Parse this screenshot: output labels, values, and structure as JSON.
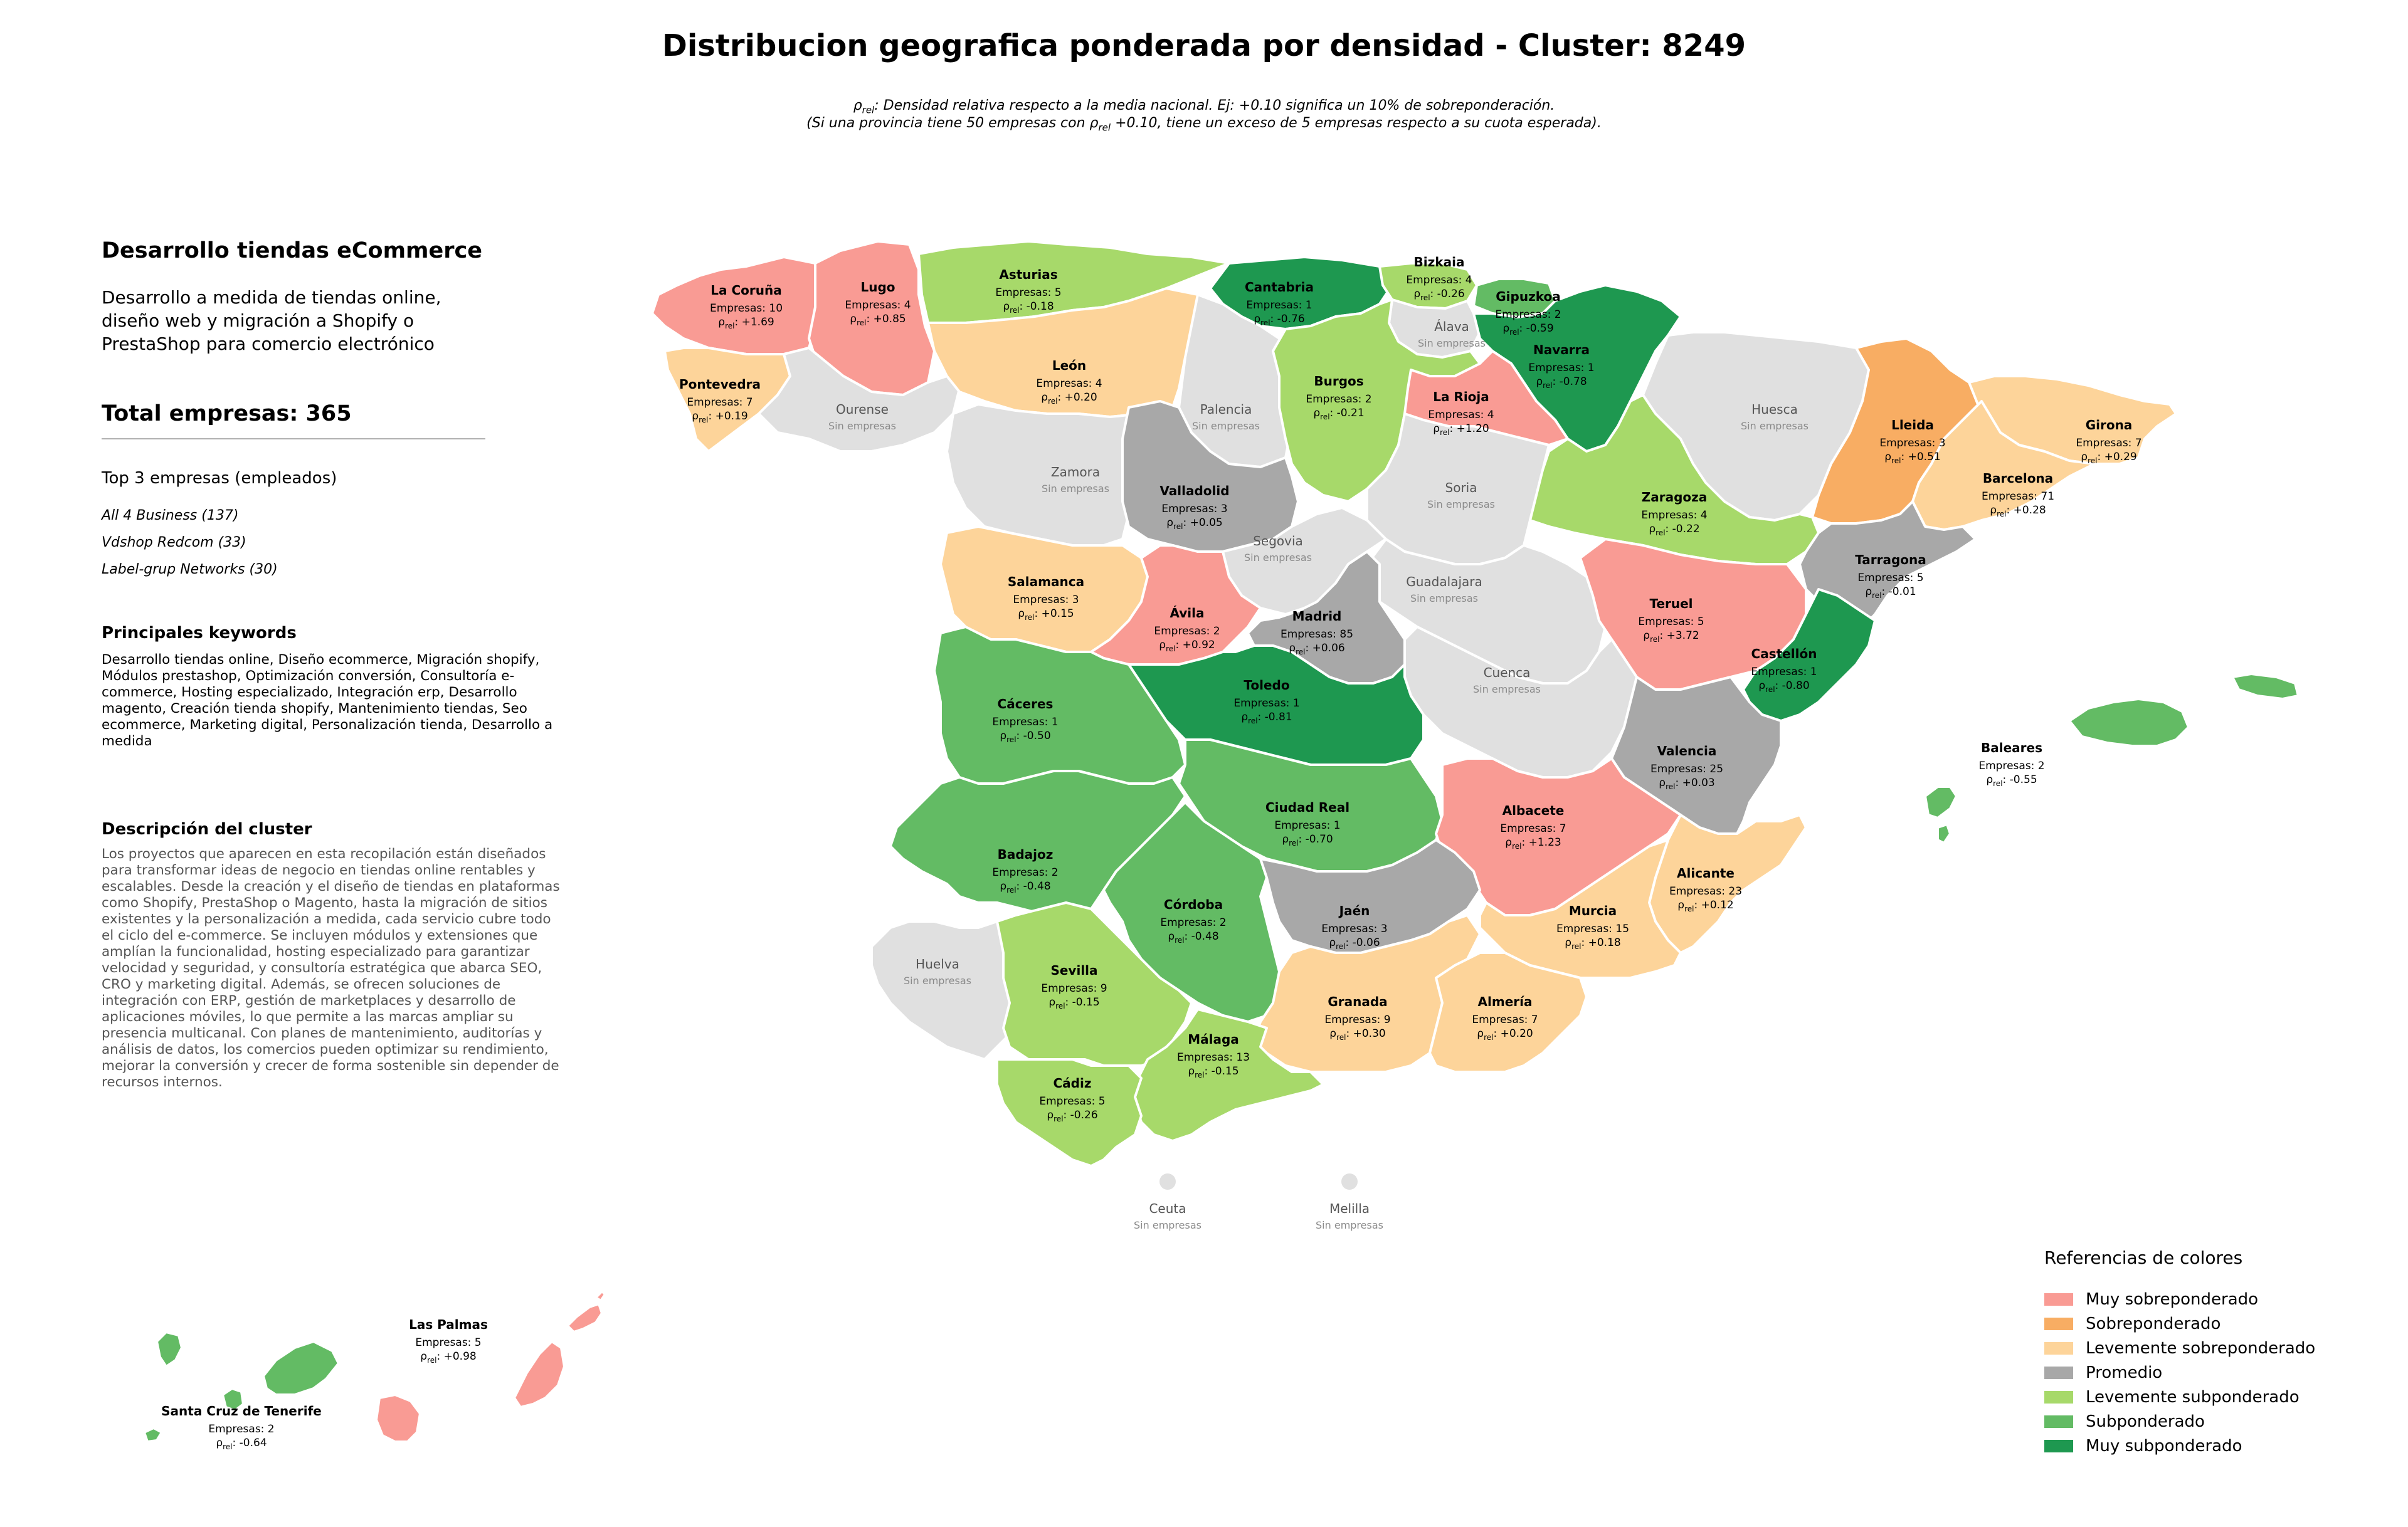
{
  "title": "Distribucion geografica ponderada por densidad - Cluster: 8249",
  "note_line1": "ρrel: Densidad relativa respecto a la media nacional. Ej: +0.10 significa un 10% de sobreponderación.",
  "note_line2": "(Si una provincia tiene 50 empresas con ρrel +0.10, tiene un exceso de 5 empresas respecto a su cuota esperada).",
  "sidebar": {
    "cluster_name": "Desarrollo tiendas eCommerce",
    "cluster_summary": "Desarrollo a medida de tiendas online, diseño web y migración a Shopify o PrestaShop para comercio electrónico",
    "total_label": "Total empresas: 365",
    "top_title": "Top 3 empresas (empleados)",
    "top_companies": [
      "All 4 Business (137)",
      "Vdshop Redcom (33)",
      "Label-grup Networks (30)"
    ],
    "keywords_title": "Principales keywords",
    "keywords": "Desarrollo tiendas online, Diseño ecommerce, Migración shopify, Módulos prestashop, Optimización conversión, Consultoría e-commerce, Hosting especializado, Integración erp, Desarrollo magento, Creación tienda shopify, Mantenimiento tiendas, Seo ecommerce, Marketing digital, Personalización tienda, Desarrollo a medida",
    "description_title": "Descripción del cluster",
    "description": "Los proyectos que aparecen en esta recopilación están diseñados para transformar ideas de negocio en tiendas online rentables y escalables. Desde la creación y el diseño de tiendas en plataformas como Shopify, PrestaShop o Magento, hasta la migración de sitios existentes y la personalización a medida, cada servicio cubre todo el ciclo del e-commerce. Se incluyen módulos y extensiones que amplían la funcionalidad, hosting especializado para garantizar velocidad y seguridad, y consultoría estratégica que abarca SEO, CRO y marketing digital. Además, se ofrecen soluciones de integración con ERP, gestión de marketplaces y desarrollo de aplicaciones móviles, lo que permite a las marcas ampliar su presencia multicanal. Con planes de mantenimiento, auditorías y análisis de datos, los comercios pueden optimizar su rendimiento, mejorar la conversión y crecer de forma sostenible sin depender de recursos internos."
  },
  "legend": {
    "title": "Referencias de colores",
    "items": [
      {
        "label": "Muy sobreponderado",
        "color": "#f99b94"
      },
      {
        "label": "Sobreponderado",
        "color": "#f8ad63"
      },
      {
        "label": "Levemente sobreponderado",
        "color": "#fdd49a"
      },
      {
        "label": "Promedio",
        "color": "#a8a8a8"
      },
      {
        "label": "Levemente subponderado",
        "color": "#a7d96a"
      },
      {
        "label": "Subponderado",
        "color": "#63bb64"
      },
      {
        "label": "Muy subponderado",
        "color": "#1e9850"
      }
    ]
  },
  "no_data_color": "#e0e0e0",
  "no_data_label": "Sin empresas",
  "provinces": [
    {
      "name": "La Coruña",
      "empresas": "Empresas: 10",
      "rho": "+1.69",
      "cat": 0
    },
    {
      "name": "Lugo",
      "empresas": "Empresas: 4",
      "rho": "+0.85",
      "cat": 0
    },
    {
      "name": "Asturias",
      "empresas": "Empresas: 5",
      "rho": "-0.18",
      "cat": 4
    },
    {
      "name": "Cantabria",
      "empresas": "Empresas: 1",
      "rho": "-0.76",
      "cat": 6
    },
    {
      "name": "Bizkaia",
      "empresas": "Empresas: 4",
      "rho": "-0.26",
      "cat": 4
    },
    {
      "name": "Gipuzkoa",
      "empresas": "Empresas: 2",
      "rho": "-0.59",
      "cat": 5
    },
    {
      "name": "Álava",
      "empresas": null,
      "rho": null,
      "cat": -1
    },
    {
      "name": "Navarra",
      "empresas": "Empresas: 1",
      "rho": "-0.78",
      "cat": 6
    },
    {
      "name": "Pontevedra",
      "empresas": "Empresas: 7",
      "rho": "+0.19",
      "cat": 2
    },
    {
      "name": "Ourense",
      "empresas": null,
      "rho": null,
      "cat": -1
    },
    {
      "name": "León",
      "empresas": "Empresas: 4",
      "rho": "+0.20",
      "cat": 2
    },
    {
      "name": "Palencia",
      "empresas": null,
      "rho": null,
      "cat": -1
    },
    {
      "name": "Burgos",
      "empresas": "Empresas: 2",
      "rho": "-0.21",
      "cat": 4
    },
    {
      "name": "La Rioja",
      "empresas": "Empresas: 4",
      "rho": "+1.20",
      "cat": 0
    },
    {
      "name": "Huesca",
      "empresas": null,
      "rho": null,
      "cat": -1
    },
    {
      "name": "Lleida",
      "empresas": "Empresas: 3",
      "rho": "+0.51",
      "cat": 1
    },
    {
      "name": "Girona",
      "empresas": "Empresas: 7",
      "rho": "+0.29",
      "cat": 2
    },
    {
      "name": "Barcelona",
      "empresas": "Empresas: 71",
      "rho": "+0.28",
      "cat": 2
    },
    {
      "name": "Zamora",
      "empresas": null,
      "rho": null,
      "cat": -1
    },
    {
      "name": "Valladolid",
      "empresas": "Empresas: 3",
      "rho": "+0.05",
      "cat": 3
    },
    {
      "name": "Soria",
      "empresas": null,
      "rho": null,
      "cat": -1
    },
    {
      "name": "Zaragoza",
      "empresas": "Empresas: 4",
      "rho": "-0.22",
      "cat": 4
    },
    {
      "name": "Tarragona",
      "empresas": "Empresas: 5",
      "rho": "-0.01",
      "cat": 3
    },
    {
      "name": "Salamanca",
      "empresas": "Empresas: 3",
      "rho": "+0.15",
      "cat": 2
    },
    {
      "name": "Segovia",
      "empresas": null,
      "rho": null,
      "cat": -1
    },
    {
      "name": "Guadalajara",
      "empresas": null,
      "rho": null,
      "cat": -1
    },
    {
      "name": "Teruel",
      "empresas": "Empresas: 5",
      "rho": "+3.72",
      "cat": 0
    },
    {
      "name": "Ávila",
      "empresas": "Empresas: 2",
      "rho": "+0.92",
      "cat": 0
    },
    {
      "name": "Madrid",
      "empresas": "Empresas: 85",
      "rho": "+0.06",
      "cat": 3
    },
    {
      "name": "Castellón",
      "empresas": "Empresas: 1",
      "rho": "-0.80",
      "cat": 6
    },
    {
      "name": "Cuenca",
      "empresas": null,
      "rho": null,
      "cat": -1
    },
    {
      "name": "Cáceres",
      "empresas": "Empresas: 1",
      "rho": "-0.50",
      "cat": 5
    },
    {
      "name": "Toledo",
      "empresas": "Empresas: 1",
      "rho": "-0.81",
      "cat": 6
    },
    {
      "name": "Valencia",
      "empresas": "Empresas: 25",
      "rho": "+0.03",
      "cat": 3
    },
    {
      "name": "Baleares",
      "empresas": "Empresas: 2",
      "rho": "-0.55",
      "cat": 5
    },
    {
      "name": "Ciudad Real",
      "empresas": "Empresas: 1",
      "rho": "-0.70",
      "cat": 5
    },
    {
      "name": "Albacete",
      "empresas": "Empresas: 7",
      "rho": "+1.23",
      "cat": 0
    },
    {
      "name": "Badajoz",
      "empresas": "Empresas: 2",
      "rho": "-0.48",
      "cat": 5
    },
    {
      "name": "Alicante",
      "empresas": "Empresas: 23",
      "rho": "+0.12",
      "cat": 2
    },
    {
      "name": "Córdoba",
      "empresas": "Empresas: 2",
      "rho": "-0.48",
      "cat": 5
    },
    {
      "name": "Jaén",
      "empresas": "Empresas: 3",
      "rho": "-0.06",
      "cat": 3
    },
    {
      "name": "Murcia",
      "empresas": "Empresas: 15",
      "rho": "+0.18",
      "cat": 2
    },
    {
      "name": "Huelva",
      "empresas": null,
      "rho": null,
      "cat": -1
    },
    {
      "name": "Sevilla",
      "empresas": "Empresas: 9",
      "rho": "-0.15",
      "cat": 4
    },
    {
      "name": "Granada",
      "empresas": "Empresas: 9",
      "rho": "+0.30",
      "cat": 2
    },
    {
      "name": "Almería",
      "empresas": "Empresas: 7",
      "rho": "+0.20",
      "cat": 2
    },
    {
      "name": "Málaga",
      "empresas": "Empresas: 13",
      "rho": "-0.15",
      "cat": 4
    },
    {
      "name": "Cádiz",
      "empresas": "Empresas: 5",
      "rho": "-0.26",
      "cat": 4
    },
    {
      "name": "Ceuta",
      "empresas": null,
      "rho": null,
      "cat": -1
    },
    {
      "name": "Melilla",
      "empresas": null,
      "rho": null,
      "cat": -1
    },
    {
      "name": "Las Palmas",
      "empresas": "Empresas: 5",
      "rho": "+0.98",
      "cat": 0
    },
    {
      "name": "Santa Cruz de Tenerife",
      "empresas": "Empresas: 2",
      "rho": "-0.64",
      "cat": 5
    }
  ]
}
